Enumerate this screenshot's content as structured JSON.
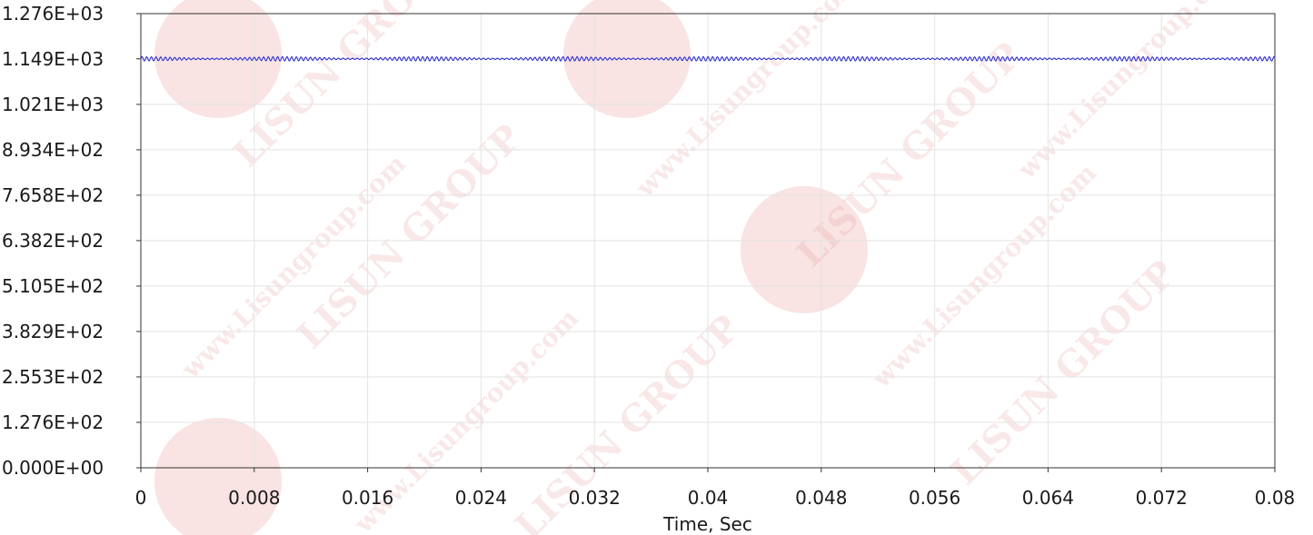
{
  "chart_data": {
    "type": "line",
    "title": "",
    "xlabel": "Time, Sec",
    "ylabel": "",
    "xlim": [
      0,
      0.08
    ],
    "ylim": [
      0,
      1276
    ],
    "grid": true,
    "x_ticks": [
      0,
      0.008,
      0.016,
      0.024,
      0.032,
      0.04,
      0.048,
      0.056,
      0.064,
      0.072,
      0.08
    ],
    "x_tick_labels": [
      "0",
      "0.008",
      "0.016",
      "0.024",
      "0.032",
      "0.04",
      "0.048",
      "0.056",
      "0.064",
      "0.072",
      "0.08"
    ],
    "y_ticks": [
      0,
      127.6,
      255.3,
      382.9,
      510.5,
      638.2,
      765.8,
      893.4,
      1021,
      1149,
      1276
    ],
    "y_tick_labels": [
      "0.000E+00",
      "1.276E+02",
      "2.553E+02",
      "3.829E+02",
      "5.105E+02",
      "6.382E+02",
      "7.658E+02",
      "8.934E+02",
      "1.021E+03",
      "1.149E+03",
      "1.276E+03"
    ],
    "series": [
      {
        "color": "#2222cc",
        "mean": 1149,
        "ripple_amplitude": 6,
        "ripple_period": 0.00033,
        "beat_period": 0.01
      }
    ]
  },
  "watermark": {
    "text_1": "www.Lisungroup.com",
    "text_2": "LISUN GROUP",
    "color": "#e89a9a"
  }
}
